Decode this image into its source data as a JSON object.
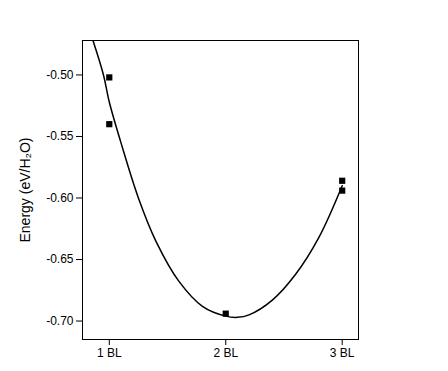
{
  "chart_data": {
    "type": "scatter",
    "y_label": "Energy (eV/H₂O)",
    "xlim": [
      0.77,
      3.14
    ],
    "xticks": [
      {
        "value": 1,
        "label": "1 BL"
      },
      {
        "value": 2,
        "label": "2 BL"
      },
      {
        "value": 3,
        "label": "3 BL"
      }
    ],
    "ylim": [
      -0.715,
      -0.472
    ],
    "yticks": [
      {
        "value": -0.5,
        "label": "-0.50"
      },
      {
        "value": -0.55,
        "label": "-0.55"
      },
      {
        "value": -0.6,
        "label": "-0.60"
      },
      {
        "value": -0.65,
        "label": "-0.65"
      },
      {
        "value": -0.7,
        "label": "-0.70"
      }
    ],
    "grid": false,
    "series": [
      {
        "type": "scatter",
        "marker": "square",
        "color": "#000000",
        "x": [
          1,
          1,
          2,
          3,
          3
        ],
        "values": [
          -0.502,
          -0.54,
          -0.694,
          -0.586,
          -0.594
        ]
      },
      {
        "type": "line",
        "line_style": "solid",
        "color": "#000000",
        "x": [
          0.86,
          0.95,
          1.0,
          1.1,
          1.25,
          1.4,
          1.6,
          1.8,
          2.0,
          2.1,
          2.2,
          2.4,
          2.6,
          2.8,
          3.0
        ],
        "values": [
          -0.472,
          -0.5,
          -0.522,
          -0.555,
          -0.6,
          -0.635,
          -0.668,
          -0.688,
          -0.696,
          -0.697,
          -0.695,
          -0.683,
          -0.662,
          -0.632,
          -0.59
        ]
      }
    ]
  }
}
